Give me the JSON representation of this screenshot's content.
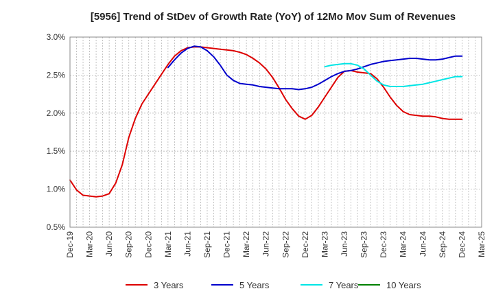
{
  "chart_data": {
    "type": "line",
    "title": "[5956]  Trend of StDev of Growth Rate (YoY) of 12Mo Mov Sum of Revenues",
    "xlabel": "",
    "ylabel": "",
    "ylim": [
      0.5,
      3.0
    ],
    "y_ticks": [
      0.5,
      1.0,
      1.5,
      2.0,
      2.5,
      3.0
    ],
    "y_tick_labels": [
      "0.5%",
      "1.0%",
      "1.5%",
      "2.0%",
      "2.5%",
      "3.0%"
    ],
    "x_tick_labels": [
      "Dec-19",
      "Mar-20",
      "Jun-20",
      "Sep-20",
      "Dec-20",
      "Mar-21",
      "Jun-21",
      "Sep-21",
      "Dec-21",
      "Mar-22",
      "Jun-22",
      "Sep-22",
      "Dec-22",
      "Mar-23",
      "Jun-23",
      "Sep-23",
      "Dec-23",
      "Mar-24",
      "Jun-24",
      "Sep-24",
      "Dec-24",
      "Mar-25"
    ],
    "x_range_months": [
      0,
      63
    ],
    "grid": true,
    "legend_position": "bottom",
    "series": [
      {
        "name": "3 Years",
        "color": "#dd0000",
        "x": [
          0,
          1,
          2,
          3,
          4,
          5,
          6,
          7,
          8,
          9,
          10,
          11,
          12,
          13,
          14,
          15,
          16,
          17,
          18,
          19,
          20,
          21,
          22,
          23,
          24,
          25,
          26,
          27,
          28,
          29,
          30,
          31,
          32,
          33,
          34,
          35,
          36,
          37,
          38,
          39,
          40,
          41,
          42,
          43,
          44,
          45,
          46,
          47,
          48,
          49,
          50,
          51,
          52,
          53,
          54,
          55,
          56,
          57,
          58,
          59,
          60
        ],
        "values": [
          1.12,
          0.99,
          0.92,
          0.91,
          0.9,
          0.91,
          0.94,
          1.08,
          1.32,
          1.68,
          1.93,
          2.12,
          2.25,
          2.38,
          2.51,
          2.64,
          2.75,
          2.82,
          2.86,
          2.87,
          2.87,
          2.86,
          2.85,
          2.84,
          2.83,
          2.82,
          2.8,
          2.77,
          2.72,
          2.66,
          2.58,
          2.47,
          2.33,
          2.18,
          2.06,
          1.96,
          1.92,
          1.97,
          2.08,
          2.21,
          2.34,
          2.47,
          2.55,
          2.56,
          2.54,
          2.53,
          2.52,
          2.45,
          2.34,
          2.21,
          2.1,
          2.02,
          1.98,
          1.97,
          1.96,
          1.96,
          1.95,
          1.93,
          1.92,
          1.92,
          1.92
        ]
      },
      {
        "name": "5 Years",
        "color": "#0000cc",
        "x": [
          15,
          16,
          17,
          18,
          19,
          20,
          21,
          22,
          23,
          24,
          25,
          26,
          27,
          28,
          29,
          30,
          31,
          32,
          33,
          34,
          35,
          36,
          37,
          38,
          39,
          40,
          41,
          42,
          43,
          44,
          45,
          46,
          47,
          48,
          49,
          50,
          51,
          52,
          53,
          54,
          55,
          56,
          57,
          58,
          59,
          60
        ],
        "values": [
          2.6,
          2.7,
          2.79,
          2.85,
          2.88,
          2.87,
          2.82,
          2.74,
          2.63,
          2.5,
          2.43,
          2.39,
          2.38,
          2.37,
          2.35,
          2.34,
          2.33,
          2.32,
          2.32,
          2.32,
          2.31,
          2.32,
          2.34,
          2.38,
          2.43,
          2.48,
          2.52,
          2.55,
          2.56,
          2.58,
          2.61,
          2.64,
          2.66,
          2.68,
          2.69,
          2.7,
          2.71,
          2.72,
          2.72,
          2.71,
          2.7,
          2.7,
          2.71,
          2.73,
          2.75,
          2.75
        ]
      },
      {
        "name": "7 Years",
        "color": "#00e5e5",
        "x": [
          39,
          40,
          41,
          42,
          43,
          44,
          45,
          46,
          47,
          48,
          49,
          50,
          51,
          52,
          53,
          54,
          55,
          56,
          57,
          58,
          59,
          60
        ],
        "values": [
          2.61,
          2.63,
          2.64,
          2.65,
          2.65,
          2.63,
          2.58,
          2.5,
          2.42,
          2.37,
          2.35,
          2.35,
          2.35,
          2.36,
          2.37,
          2.38,
          2.4,
          2.42,
          2.44,
          2.46,
          2.48,
          2.48
        ]
      },
      {
        "name": "10 Years",
        "color": "#008000",
        "x": [],
        "values": []
      }
    ]
  }
}
